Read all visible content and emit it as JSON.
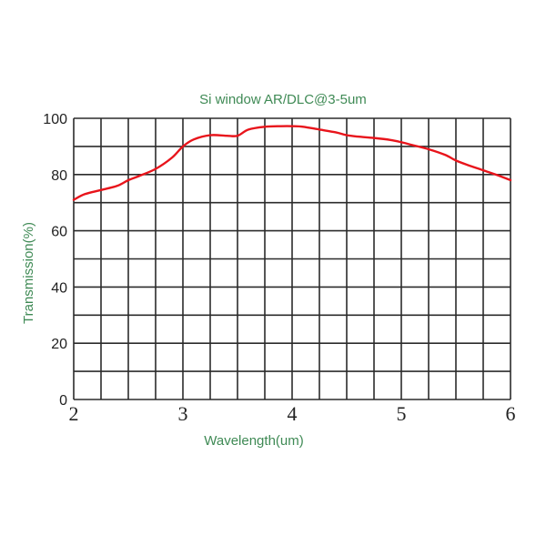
{
  "chart_data": {
    "type": "line",
    "title": "Si window AR/DLC@3-5um",
    "xlabel": "Wavelength(um)",
    "ylabel": "Transmission(%)",
    "xlim": [
      2,
      6
    ],
    "ylim": [
      0,
      100
    ],
    "x_ticks": [
      "2",
      "3",
      "4",
      "5",
      "6"
    ],
    "y_ticks": [
      "0",
      "20",
      "40",
      "60",
      "80",
      "100"
    ],
    "grid": true,
    "grid_x_step": 0.25,
    "grid_y_step": 10,
    "legend": null,
    "series": [
      {
        "name": "Transmission",
        "color": "#e8141b",
        "x": [
          2.0,
          2.1,
          2.25,
          2.4,
          2.5,
          2.6,
          2.75,
          2.9,
          3.0,
          3.1,
          3.25,
          3.4,
          3.5,
          3.6,
          3.75,
          3.9,
          4.0,
          4.1,
          4.25,
          4.4,
          4.5,
          4.6,
          4.75,
          4.9,
          5.0,
          5.1,
          5.25,
          5.4,
          5.5,
          5.6,
          5.75,
          5.9,
          6.0
        ],
        "values": [
          71,
          73,
          74.5,
          76,
          78,
          79.5,
          82,
          86,
          90,
          92.5,
          94,
          93.8,
          93.8,
          96,
          97,
          97.2,
          97.2,
          97,
          96,
          95,
          94,
          93.5,
          93,
          92.3,
          91.5,
          90.5,
          89,
          87,
          85,
          83.5,
          81.5,
          79.5,
          78
        ]
      }
    ]
  }
}
